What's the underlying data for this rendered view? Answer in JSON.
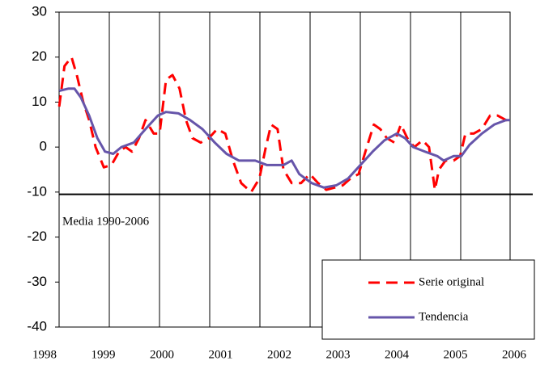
{
  "chart_data": {
    "type": "line",
    "xlim": [
      1998,
      2006
    ],
    "xticks": [
      1998,
      1999,
      2000,
      2001,
      2002,
      2003,
      2004,
      2005,
      2006
    ],
    "ylim": [
      -40,
      30
    ],
    "yticks": [
      30,
      20,
      10,
      0,
      -10,
      -20,
      -30,
      -40
    ],
    "mean_line": {
      "value": -10.5,
      "label": "Media 1990-2006"
    },
    "legend": "bottom-right",
    "series": [
      {
        "name": "Serie original",
        "color": "#ff0000",
        "dashed": true,
        "x": [
          1998.25,
          1998.34,
          1998.46,
          1998.55,
          1998.66,
          1998.76,
          1998.87,
          1999.01,
          1999.14,
          1999.27,
          1999.38,
          1999.49,
          1999.61,
          1999.72,
          1999.86,
          1999.96,
          2000.07,
          2000.18,
          2000.3,
          2000.41,
          2000.52,
          2000.66,
          2000.8,
          2000.94,
          2001.08,
          2001.21,
          2001.35,
          2001.52,
          2001.66,
          2001.77,
          2001.86,
          2001.97,
          2002.07,
          2002.21,
          2002.37,
          2002.52,
          2002.66,
          2002.8,
          2002.94,
          2003.08,
          2003.21,
          2003.35,
          2003.49,
          2003.61,
          2003.72,
          2003.83,
          2003.96,
          2004.07,
          2004.18,
          2004.3,
          2004.44,
          2004.55,
          2004.65,
          2004.72,
          2004.83,
          2004.97,
          2005.08,
          2005.17,
          2005.31,
          2005.45,
          2005.59,
          2005.72,
          2005.86,
          2005.93
        ],
        "values": [
          9,
          18,
          20,
          16,
          10,
          6,
          0,
          -4.5,
          -4,
          -1,
          0,
          -1,
          2,
          6,
          3,
          3,
          15,
          16,
          13,
          6,
          2,
          1,
          2,
          4,
          3,
          -3,
          -8,
          -10,
          -7,
          0,
          5,
          4,
          -5,
          -8,
          -8,
          -6,
          -8,
          -9.5,
          -9,
          -8.5,
          -7,
          -6,
          0,
          5,
          4,
          2,
          1,
          5,
          2,
          0,
          1.5,
          0,
          -9.5,
          -5,
          -3,
          -3,
          -2,
          3,
          3,
          4,
          7,
          7,
          6,
          6
        ]
      },
      {
        "name": "Tendencia",
        "color": "#6655aa",
        "dashed": false,
        "x": [
          1998.25,
          1998.41,
          1998.51,
          1998.62,
          1998.76,
          1998.9,
          1999.03,
          1999.17,
          1999.31,
          1999.52,
          1999.72,
          1999.93,
          2000.07,
          2000.28,
          2000.48,
          2000.69,
          2000.9,
          2001.1,
          2001.31,
          2001.59,
          2001.79,
          2002.07,
          2002.21,
          2002.34,
          2002.55,
          2002.76,
          2002.97,
          2003.17,
          2003.38,
          2003.59,
          2003.79,
          2004.0,
          2004.14,
          2004.28,
          2004.48,
          2004.69,
          2004.8,
          2004.97,
          2005.1,
          2005.24,
          2005.45,
          2005.66,
          2005.86,
          2005.93
        ],
        "values": [
          12.5,
          13,
          13,
          11,
          7,
          2,
          -1,
          -1.5,
          0,
          1,
          4,
          7,
          7.8,
          7.5,
          6,
          4,
          1,
          -1.5,
          -3,
          -3,
          -4,
          -4,
          -3,
          -6,
          -8,
          -9,
          -8.5,
          -7,
          -4,
          -1,
          1.5,
          3,
          2,
          0,
          -1,
          -2,
          -3,
          -2,
          -2,
          0.5,
          3,
          5,
          6,
          6
        ]
      }
    ]
  }
}
